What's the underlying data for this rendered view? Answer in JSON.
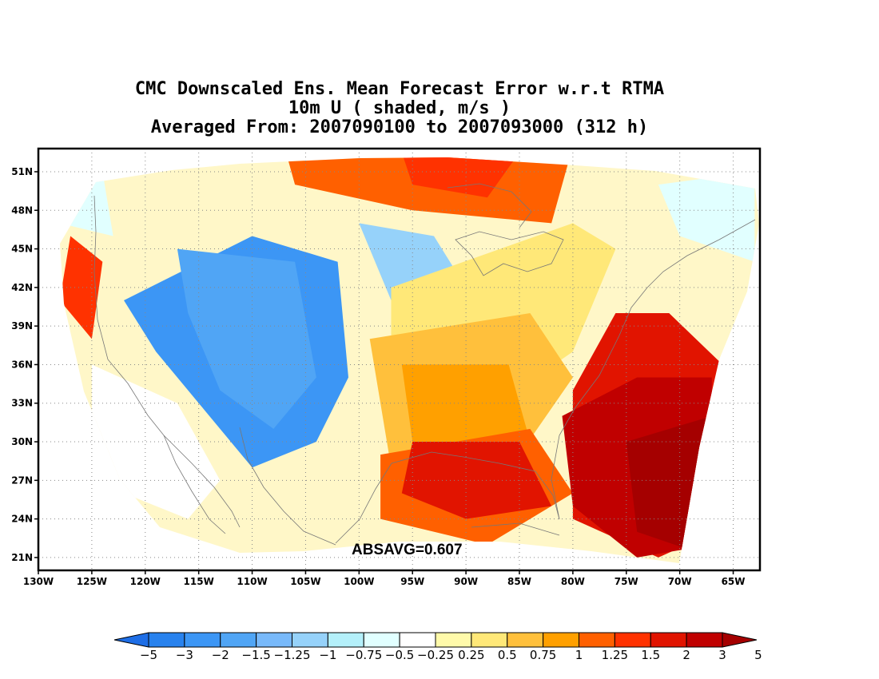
{
  "title": {
    "line1": "CMC Downscaled Ens. Mean Forecast Error w.r.t RTMA",
    "line2": "10m U ( shaded, m/s )",
    "line3": "Averaged From: 2007090100 to 2007093000 (312 h)"
  },
  "annotation": "ABSAVG=0.607",
  "map": {
    "lon_min": -130,
    "lon_max": -62.5,
    "lat_min": 20,
    "lat_max": 52.8,
    "lon_ticks": [
      {
        "value": -130,
        "label": "130W"
      },
      {
        "value": -125,
        "label": "125W"
      },
      {
        "value": -120,
        "label": "120W"
      },
      {
        "value": -115,
        "label": "115W"
      },
      {
        "value": -110,
        "label": "110W"
      },
      {
        "value": -105,
        "label": "105W"
      },
      {
        "value": -100,
        "label": "100W"
      },
      {
        "value": -95,
        "label": "95W"
      },
      {
        "value": -90,
        "label": "90W"
      },
      {
        "value": -85,
        "label": "85W"
      },
      {
        "value": -80,
        "label": "80W"
      },
      {
        "value": -75,
        "label": "75W"
      },
      {
        "value": -70,
        "label": "70W"
      },
      {
        "value": -65,
        "label": "65W"
      }
    ],
    "lat_ticks": [
      {
        "value": 21,
        "label": "21N"
      },
      {
        "value": 24,
        "label": "24N"
      },
      {
        "value": 27,
        "label": "27N"
      },
      {
        "value": 30,
        "label": "30N"
      },
      {
        "value": 33,
        "label": "33N"
      },
      {
        "value": 36,
        "label": "36N"
      },
      {
        "value": 39,
        "label": "39N"
      },
      {
        "value": 42,
        "label": "42N"
      },
      {
        "value": 45,
        "label": "45N"
      },
      {
        "value": 48,
        "label": "48N"
      },
      {
        "value": 51,
        "label": "51N"
      }
    ],
    "field_regions": [
      {
        "class": -2,
        "pts": [
          [
            -122,
            41
          ],
          [
            -110,
            46
          ],
          [
            -102,
            44
          ],
          [
            -101,
            35
          ],
          [
            -104,
            30
          ],
          [
            -110,
            28
          ],
          [
            -115,
            33
          ],
          [
            -119,
            37
          ]
        ]
      },
      {
        "class": -1.5,
        "pts": [
          [
            -117,
            45
          ],
          [
            -106,
            44
          ],
          [
            -104,
            35
          ],
          [
            -108,
            31
          ],
          [
            -113,
            34
          ],
          [
            -116,
            40
          ]
        ]
      },
      {
        "class": -1,
        "pts": [
          [
            -100,
            47
          ],
          [
            -93,
            46
          ],
          [
            -90,
            42
          ],
          [
            -97,
            41
          ]
        ]
      },
      {
        "class": -0.5,
        "pts": [
          [
            -72,
            50
          ],
          [
            -63,
            51
          ],
          [
            -63,
            44
          ],
          [
            -70,
            46
          ]
        ]
      },
      {
        "class": -0.5,
        "pts": [
          [
            -130,
            50
          ],
          [
            -124,
            51
          ],
          [
            -123,
            46
          ],
          [
            -128,
            47
          ]
        ]
      },
      {
        "class": -0.25,
        "pts": [
          [
            -125,
            36
          ],
          [
            -117,
            33
          ],
          [
            -113,
            27
          ],
          [
            -116,
            24
          ],
          [
            -125,
            27
          ]
        ]
      },
      {
        "class": 0.25,
        "pts": [
          [
            -97,
            42
          ],
          [
            -80,
            47
          ],
          [
            -76,
            45
          ],
          [
            -80,
            37
          ],
          [
            -87,
            33
          ],
          [
            -97,
            33
          ]
        ]
      },
      {
        "class": 0.5,
        "pts": [
          [
            -99,
            38
          ],
          [
            -84,
            40
          ],
          [
            -80,
            35
          ],
          [
            -85,
            29
          ],
          [
            -97,
            28
          ]
        ]
      },
      {
        "class": 0.75,
        "pts": [
          [
            -96,
            36
          ],
          [
            -86,
            36
          ],
          [
            -84,
            30
          ],
          [
            -95,
            30
          ]
        ]
      },
      {
        "class": 1,
        "pts": [
          [
            -98,
            29
          ],
          [
            -84,
            31
          ],
          [
            -80,
            26
          ],
          [
            -88,
            22
          ],
          [
            -98,
            24
          ]
        ]
      },
      {
        "class": 1,
        "pts": [
          [
            -107,
            53
          ],
          [
            -80,
            53
          ],
          [
            -82,
            47
          ],
          [
            -95,
            48
          ],
          [
            -106,
            50
          ]
        ]
      },
      {
        "class": 1.25,
        "pts": [
          [
            -96,
            52.5
          ],
          [
            -85,
            52.5
          ],
          [
            -88,
            49
          ],
          [
            -95,
            50
          ]
        ]
      },
      {
        "class": 1.25,
        "pts": [
          [
            -127,
            46
          ],
          [
            -124,
            44
          ],
          [
            -125,
            38
          ],
          [
            -128,
            41
          ]
        ]
      },
      {
        "class": 1.5,
        "pts": [
          [
            -95,
            30
          ],
          [
            -85,
            30
          ],
          [
            -82,
            25
          ],
          [
            -90,
            24
          ],
          [
            -96,
            26
          ]
        ]
      },
      {
        "class": 1.5,
        "pts": [
          [
            -80,
            34
          ],
          [
            -76,
            40
          ],
          [
            -71,
            40
          ],
          [
            -66,
            36
          ],
          [
            -64,
            24
          ],
          [
            -72,
            21
          ],
          [
            -80,
            24
          ]
        ]
      },
      {
        "class": 2,
        "pts": [
          [
            -81,
            32
          ],
          [
            -74,
            35
          ],
          [
            -67,
            35
          ],
          [
            -67,
            22
          ],
          [
            -74,
            21
          ],
          [
            -80,
            25
          ]
        ]
      },
      {
        "class": 3,
        "pts": [
          [
            -75,
            30
          ],
          [
            -67,
            32
          ],
          [
            -67,
            21
          ],
          [
            -74,
            23
          ]
        ]
      }
    ]
  },
  "colorbar": {
    "colors": [
      "#1e6ee6",
      "#2882ee",
      "#3c96f5",
      "#50a5f5",
      "#78b9fa",
      "#96d2fa",
      "#b4f0fa",
      "#e1ffff",
      "#ffffff",
      "#fffaaa",
      "#ffe878",
      "#ffc03c",
      "#ffa000",
      "#ff6000",
      "#ff3200",
      "#e11400",
      "#c00000",
      "#a50000"
    ],
    "labels": [
      "−5",
      "−3",
      "−2",
      "−1.5",
      "−1.25",
      "−1",
      "−0.75",
      "−0.5",
      "−0.25",
      "0.25",
      "0.5",
      "0.75",
      "1",
      "1.25",
      "1.5",
      "2",
      "3",
      "5"
    ],
    "class_values": [
      -5,
      -3,
      -2,
      -1.5,
      -1.25,
      -1,
      -0.75,
      -0.5,
      -0.25,
      0,
      0.25,
      0.5,
      0.75,
      1,
      1.25,
      1.5,
      2,
      3
    ]
  }
}
